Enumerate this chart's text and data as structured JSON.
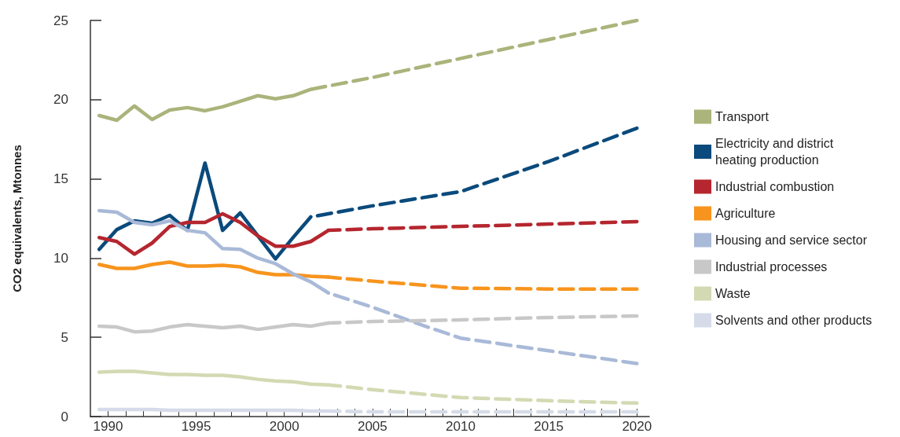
{
  "chart_data": {
    "type": "line",
    "ylabel": "CO2 equivalents, Mtonnes",
    "xlim": [
      1989,
      2020.7
    ],
    "ylim": [
      0,
      25
    ],
    "yticks": [
      0,
      5,
      10,
      15,
      20,
      25
    ],
    "xticks": [
      1990,
      {
        "value": 1991,
        "label": null
      },
      {
        "value": 1992,
        "label": null
      },
      {
        "value": 1993,
        "label": null
      },
      {
        "value": 1994,
        "label": null
      },
      1995,
      {
        "value": 1996,
        "label": null
      },
      {
        "value": 1997,
        "label": null
      },
      {
        "value": 1998,
        "label": null
      },
      {
        "value": 1999,
        "label": null
      },
      2000,
      {
        "value": 2001,
        "label": null
      },
      {
        "value": 2002,
        "label": null
      },
      {
        "value": 2003,
        "label": null
      },
      {
        "value": 2004,
        "label": null
      },
      2005,
      {
        "value": 2006,
        "label": null
      },
      {
        "value": 2007,
        "label": null
      },
      {
        "value": 2008,
        "label": null
      },
      {
        "value": 2009,
        "label": null
      },
      2010,
      {
        "value": 2011,
        "label": null
      },
      {
        "value": 2012,
        "label": null
      },
      {
        "value": 2013,
        "label": null
      },
      {
        "value": 2014,
        "label": null
      },
      2015,
      {
        "value": 2016,
        "label": null
      },
      {
        "value": 2017,
        "label": null
      },
      {
        "value": 2018,
        "label": null
      },
      {
        "value": 2019,
        "label": null
      },
      2020
    ],
    "grid": false,
    "legend": "right",
    "marker": "none",
    "series": [
      {
        "name": "Transport",
        "color": "#aab47b",
        "line_style": "solid",
        "x": [
          1989.5,
          1990.5,
          1991.5,
          1992.5,
          1993.5,
          1994.5,
          1995.5,
          1996.5,
          1997.5,
          1998.5,
          1999.5,
          2000.5,
          2001.5
        ],
        "values": [
          19.0,
          18.7,
          19.6,
          18.75,
          19.35,
          19.5,
          19.3,
          19.55,
          19.9,
          20.25,
          20.05,
          20.25,
          20.65
        ]
      },
      {
        "name": "Electricity and district heating production",
        "color": "#0a4a7c",
        "line_style": "solid",
        "x": [
          1989.5,
          1990.5,
          1991.5,
          1992.5,
          1993.5,
          1994.5,
          1995.5,
          1996.5,
          1997.5,
          1998.5,
          1999.5,
          2000.5,
          2001.5
        ],
        "values": [
          10.55,
          11.8,
          12.35,
          12.2,
          12.7,
          11.75,
          16.0,
          11.75,
          12.85,
          11.4,
          9.95,
          11.3,
          12.6
        ]
      },
      {
        "name": "Industrial combustion",
        "color": "#b5262f",
        "line_style": "solid",
        "x": [
          1989.5,
          1990.5,
          1991.5,
          1992.5,
          1993.5,
          1994.5,
          1995.5,
          1996.5,
          1997.5,
          1998.5,
          1999.5,
          2000.5,
          2001.5,
          2002.5
        ],
        "values": [
          11.3,
          11.05,
          10.25,
          10.95,
          12.0,
          12.25,
          12.25,
          12.8,
          12.25,
          11.4,
          10.75,
          10.75,
          11.05,
          11.75
        ]
      },
      {
        "name": "Agriculture",
        "color": "#f7941d",
        "line_style": "solid",
        "x": [
          1989.5,
          1990.5,
          1991.5,
          1992.5,
          1993.5,
          1994.5,
          1995.5,
          1996.5,
          1997.5,
          1998.5,
          1999.5,
          2000.5,
          2001.5,
          2002.5
        ],
        "values": [
          9.6,
          9.35,
          9.35,
          9.6,
          9.75,
          9.5,
          9.5,
          9.55,
          9.45,
          9.1,
          8.95,
          8.95,
          8.85,
          8.8
        ]
      },
      {
        "name": "Housing and service sector",
        "color": "#a9b9d8",
        "line_style": "solid",
        "x": [
          1989.5,
          1990.5,
          1991.5,
          1992.5,
          1993.5,
          1994.5,
          1995.5,
          1996.5,
          1997.5,
          1998.5,
          1999.5,
          2000.5,
          2001.5,
          2002.5
        ],
        "values": [
          13.0,
          12.9,
          12.25,
          12.1,
          12.35,
          11.75,
          11.6,
          10.6,
          10.55,
          10.0,
          9.65,
          9.0,
          8.5,
          7.8
        ]
      },
      {
        "name": "Industrial processes",
        "color": "#c8c8c8",
        "line_style": "solid",
        "x": [
          1989.5,
          1990.5,
          1991.5,
          1992.5,
          1993.5,
          1994.5,
          1995.5,
          1996.5,
          1997.5,
          1998.5,
          1999.5,
          2000.5,
          2001.5,
          2002.5
        ],
        "values": [
          5.7,
          5.65,
          5.35,
          5.4,
          5.65,
          5.8,
          5.7,
          5.6,
          5.7,
          5.5,
          5.65,
          5.8,
          5.7,
          5.9
        ]
      },
      {
        "name": "Waste",
        "color": "#d3dab3",
        "line_style": "solid",
        "x": [
          1989.5,
          1990.5,
          1991.5,
          1992.5,
          1993.5,
          1994.5,
          1995.5,
          1996.5,
          1997.5,
          1998.5,
          1999.5,
          2000.5,
          2001.5,
          2002.5
        ],
        "values": [
          2.8,
          2.85,
          2.85,
          2.75,
          2.65,
          2.65,
          2.6,
          2.6,
          2.5,
          2.35,
          2.25,
          2.2,
          2.05,
          2.0
        ]
      },
      {
        "name": "Solvents and other products",
        "color": "#d5dbe8",
        "line_style": "solid",
        "x": [
          1989.5,
          1990.5,
          1991.5,
          1992.5,
          1993.5,
          1994.5,
          1995.5,
          1996.5,
          1997.5,
          1998.5,
          1999.5,
          2000.5,
          2001.5,
          2002.5
        ],
        "values": [
          0.45,
          0.45,
          0.45,
          0.45,
          0.4,
          0.4,
          0.4,
          0.4,
          0.4,
          0.4,
          0.4,
          0.4,
          0.35,
          0.35
        ]
      },
      {
        "color": "#aab47b",
        "line_style": "dashed",
        "x": [
          2001.5,
          2005,
          2010,
          2015,
          2020
        ],
        "values": [
          20.65,
          21.4,
          22.6,
          23.8,
          25.0
        ]
      },
      {
        "color": "#0a4a7c",
        "line_style": "dashed",
        "x": [
          2001.5,
          2005,
          2010,
          2015,
          2020
        ],
        "values": [
          12.6,
          13.3,
          14.2,
          16.1,
          18.2
        ]
      },
      {
        "color": "#b5262f",
        "line_style": "dashed",
        "x": [
          2002.5,
          2005,
          2010,
          2015,
          2020
        ],
        "values": [
          11.75,
          11.85,
          12.0,
          12.15,
          12.3
        ]
      },
      {
        "color": "#f7941d",
        "line_style": "dashed",
        "x": [
          2002.5,
          2005,
          2010,
          2015,
          2020
        ],
        "values": [
          8.8,
          8.55,
          8.1,
          8.05,
          8.05
        ]
      },
      {
        "color": "#a9b9d8",
        "line_style": "dashed",
        "x": [
          2002.5,
          2005,
          2008,
          2010,
          2015,
          2020
        ],
        "values": [
          7.8,
          6.9,
          5.7,
          4.95,
          4.15,
          3.35
        ]
      },
      {
        "color": "#c8c8c8",
        "line_style": "dashed",
        "x": [
          2002.5,
          2005,
          2010,
          2015,
          2020
        ],
        "values": [
          5.9,
          6.0,
          6.1,
          6.25,
          6.35
        ]
      },
      {
        "color": "#d3dab3",
        "line_style": "dashed",
        "x": [
          2002.5,
          2005,
          2010,
          2015,
          2020
        ],
        "values": [
          2.0,
          1.7,
          1.2,
          1.0,
          0.85
        ]
      },
      {
        "color": "#d5dbe8",
        "line_style": "dashed",
        "x": [
          2002.5,
          2005,
          2010,
          2015,
          2020
        ],
        "values": [
          0.35,
          0.3,
          0.3,
          0.3,
          0.3
        ]
      }
    ]
  }
}
